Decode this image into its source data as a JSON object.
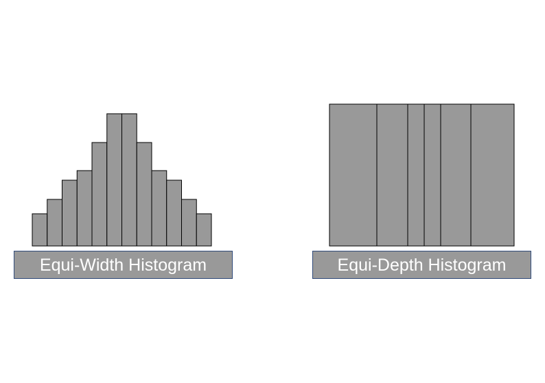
{
  "colors": {
    "bar_fill": "#999999",
    "bar_stroke": "#000000",
    "caption_fill": "#999999",
    "caption_border": "#2f4a7a",
    "caption_text": "#ffffff"
  },
  "histograms": {
    "equi_width": {
      "caption": "Equi-Width Histogram",
      "bucket_widths": [
        1,
        1,
        1,
        1,
        1,
        1,
        1,
        1,
        1,
        1,
        1,
        1
      ],
      "bucket_heights": [
        47,
        68,
        96,
        110,
        151,
        193,
        193,
        151,
        110,
        96,
        68,
        47
      ]
    },
    "equi_depth": {
      "caption": "Equi-Depth Histogram",
      "bucket_widths": [
        69,
        45,
        24,
        24,
        44,
        63
      ],
      "bucket_heights": [
        207,
        207,
        207,
        207,
        207,
        207
      ]
    }
  }
}
